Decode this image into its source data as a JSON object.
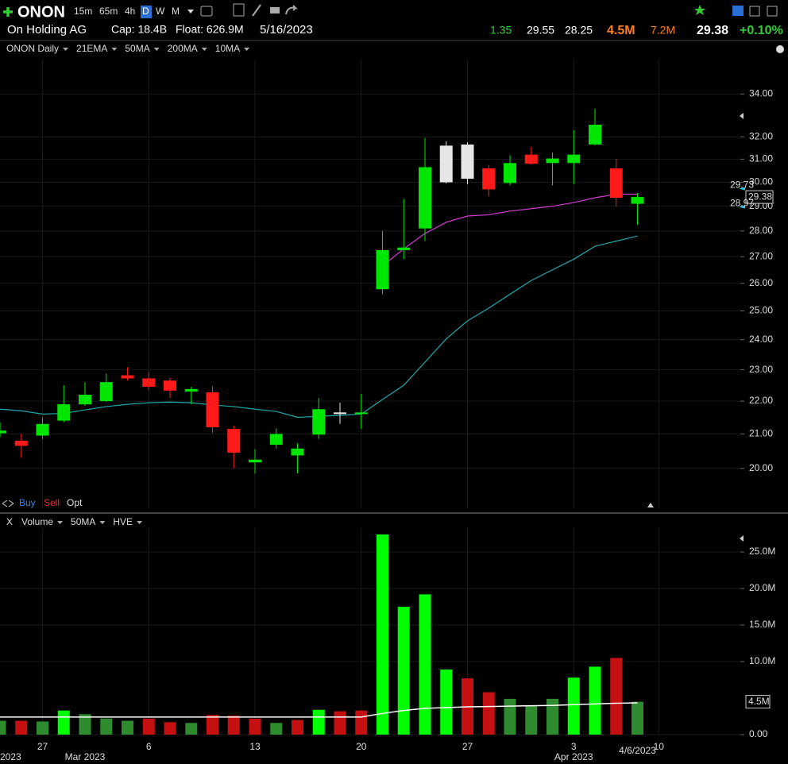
{
  "header": {
    "symbol": "ONON",
    "intervals": [
      "15m",
      "65m",
      "4h",
      "D",
      "W",
      "M"
    ],
    "company": "On Holding AG",
    "cap": "Cap: 18.4B",
    "float": "Float: 626.9M",
    "date": "5/16/2023",
    "quote": [
      "1.35",
      "29.55",
      "28.25",
      "4.5M",
      "7.2M",
      "29.38",
      "+0.10%"
    ],
    "trade_buttons": [
      "Buy",
      "Sell",
      "Opt"
    ]
  },
  "chart_data": [
    {
      "type": "candlestick",
      "title": "ONON Daily",
      "categories": [
        null,
        null,
        "27",
        null,
        null,
        null,
        null,
        "6",
        null,
        null,
        null,
        null,
        "13",
        null,
        null,
        null,
        null,
        "20",
        null,
        null,
        null,
        null,
        "27",
        null,
        null,
        null,
        null,
        "3",
        null,
        null,
        null,
        "10"
      ],
      "month_labels": [
        "2023",
        null,
        null,
        null,
        "Mar 2023",
        null,
        null,
        null,
        null,
        null,
        null,
        null,
        null,
        null,
        null,
        null,
        null,
        null,
        null,
        null,
        null,
        null,
        null,
        null,
        null,
        null,
        null,
        "Apr 2023",
        null,
        null,
        "4/6/2023",
        null
      ],
      "open": [
        21.02,
        20.8,
        20.95,
        21.4,
        21.9,
        22.0,
        22.82,
        22.72,
        22.65,
        22.3,
        22.28,
        21.15,
        20.17,
        20.68,
        20.37,
        20.98,
        21.6,
        21.6,
        25.78,
        27.25,
        28.1,
        30.0,
        30.15,
        30.6,
        29.97,
        31.2,
        30.83,
        30.83,
        31.65,
        30.6,
        29.1,
        null
      ],
      "high": [
        21.35,
        21.0,
        21.5,
        22.5,
        22.6,
        22.88,
        23.08,
        22.92,
        22.75,
        22.45,
        22.48,
        21.25,
        20.55,
        21.17,
        20.72,
        22.1,
        21.95,
        22.22,
        28.0,
        29.3,
        31.95,
        31.8,
        31.75,
        30.75,
        31.17,
        31.55,
        31.3,
        32.3,
        33.3,
        31.02,
        29.55,
        null
      ],
      "low": [
        20.9,
        20.3,
        20.85,
        21.35,
        21.85,
        21.98,
        22.65,
        22.35,
        22.1,
        21.9,
        21.02,
        20.0,
        19.85,
        20.57,
        19.86,
        20.85,
        21.3,
        21.15,
        25.6,
        26.9,
        27.6,
        29.95,
        29.92,
        29.4,
        29.87,
        30.77,
        29.87,
        29.93,
        31.62,
        29.0,
        28.25,
        null
      ],
      "close": [
        21.1,
        20.65,
        21.3,
        21.9,
        22.2,
        22.6,
        22.72,
        22.45,
        22.33,
        22.38,
        21.2,
        20.45,
        20.25,
        21.0,
        20.57,
        21.75,
        21.65,
        21.65,
        27.25,
        27.35,
        30.65,
        31.6,
        31.65,
        29.7,
        30.83,
        30.8,
        31.03,
        31.2,
        32.55,
        29.35,
        29.38,
        null
      ],
      "candle_colors": [
        "#00e600",
        "#ff1a1a",
        "#00e600",
        "#00e600",
        "#00e600",
        "#00e600",
        "#ff1a1a",
        "#ff1a1a",
        "#ff1a1a",
        "#00e600",
        "#ff1a1a",
        "#ff1a1a",
        "#00e600",
        "#00e600",
        "#00e600",
        "#00e600",
        "#e6e6e6",
        "#00e600",
        "#00e600",
        "#00e600",
        "#00e600",
        "#e6e6e6",
        "#e6e6e6",
        "#ff1a1a",
        "#00e600",
        "#ff1a1a",
        "#00e600",
        "#00e600",
        "#00e600",
        "#ff1a1a",
        "#00e600",
        null
      ],
      "series": [
        {
          "name": "21EMA",
          "color": "#1fa8a8",
          "values": [
            21.75,
            21.7,
            21.6,
            21.62,
            21.73,
            21.83,
            21.9,
            21.95,
            21.97,
            21.95,
            21.88,
            21.83,
            21.75,
            21.68,
            21.5,
            21.53,
            21.56,
            21.6,
            22.05,
            22.5,
            23.25,
            24.03,
            24.65,
            25.1,
            25.6,
            26.1,
            26.5,
            26.9,
            27.4,
            27.6,
            27.8,
            null
          ]
        },
        {
          "color": "#d23cd2",
          "values": [
            null,
            null,
            null,
            null,
            null,
            null,
            null,
            null,
            null,
            null,
            null,
            null,
            null,
            null,
            null,
            null,
            null,
            null,
            26.65,
            27.3,
            27.9,
            28.35,
            28.6,
            28.65,
            28.8,
            28.9,
            29.0,
            29.15,
            29.35,
            29.5,
            29.5,
            null
          ]
        }
      ],
      "legend_extra": [
        {
          "name": "50MA",
          "color": "#e6c229"
        },
        {
          "name": "200MA",
          "color": "#ffffff"
        },
        {
          "name": "10MA",
          "color": "#ff8c1a"
        }
      ],
      "title_color": "#2ecc40",
      "log_scale": true,
      "ylim": [
        18.9,
        35.7
      ],
      "yticks": [
        {
          "value": 20,
          "label": "20.00"
        },
        {
          "value": 21,
          "label": "21.00"
        },
        {
          "value": 22,
          "label": "22.00"
        },
        {
          "value": 23,
          "label": "23.00"
        },
        {
          "value": 24,
          "label": "24.00"
        },
        {
          "value": 25,
          "label": "25.00"
        },
        {
          "value": 26,
          "label": "26.00"
        },
        {
          "value": 27,
          "label": "27.00"
        },
        {
          "value": 28,
          "label": "28.00"
        },
        {
          "value": 29,
          "label": "29.00"
        },
        {
          "value": 30,
          "label": "30.00"
        },
        {
          "value": 31,
          "label": "31.00"
        },
        {
          "value": 32,
          "label": "32.00"
        },
        {
          "value": 34,
          "label": "34.00"
        }
      ],
      "price_tag": 29.38,
      "small_tags": [
        29.73,
        28.97
      ],
      "grid": true
    },
    {
      "type": "bar",
      "close": "X",
      "title": "Volume",
      "values": [
        1900000,
        1900000,
        1800000,
        3300000,
        2800000,
        2200000,
        1900000,
        2200000,
        1700000,
        1600000,
        2700000,
        2600000,
        2200000,
        1600000,
        2000000,
        3400000,
        3200000,
        3300000,
        27400000,
        17500000,
        19200000,
        8900000,
        7700000,
        5800000,
        4900000,
        4000000,
        4900000,
        7800000,
        9300000,
        10500000,
        4500000,
        null
      ],
      "colors": [
        "#2e8b2e",
        "#c41010",
        "#2e8b2e",
        "#00ff00",
        "#2e8b2e",
        "#2e8b2e",
        "#2e8b2e",
        "#c41010",
        "#c41010",
        "#2e8b2e",
        "#c41010",
        "#c41010",
        "#c41010",
        "#2e8b2e",
        "#c41010",
        "#00ff00",
        "#c41010",
        "#c41010",
        "#00ff00",
        "#00ff00",
        "#00ff00",
        "#00ff00",
        "#c41010",
        "#c41010",
        "#2e8b2e",
        "#2e8b2e",
        "#2e8b2e",
        "#00ff00",
        "#00ff00",
        "#c41010",
        "#2e8b2e",
        null
      ],
      "series": [
        {
          "name": "50MA",
          "color": "#ffffff",
          "values": [
            2400000,
            2400000,
            2400000,
            2400000,
            2400000,
            2400000,
            2400000,
            2400000,
            2400000,
            2400000,
            2400000,
            2400000,
            2400000,
            2400000,
            2400000,
            2400000,
            2400000,
            2400000,
            2900000,
            3300000,
            3600000,
            3700000,
            3800000,
            3850000,
            3900000,
            3950000,
            4000000,
            4100000,
            4200000,
            4300000,
            4350000,
            null
          ]
        }
      ],
      "legend_extra": [
        "HVE"
      ],
      "title_color": "#2ecc40",
      "ylim": [
        0,
        28260000
      ],
      "yticks": [
        {
          "value": 0,
          "label": "0.00"
        },
        {
          "value": 10000000,
          "label": "10.0M"
        },
        {
          "value": 15000000,
          "label": "15.0M"
        },
        {
          "value": 20000000,
          "label": "20.0M"
        },
        {
          "value": 25000000,
          "label": "25.0M"
        }
      ],
      "tag": {
        "value": 4500000,
        "label": "4.5M"
      },
      "grid": true
    }
  ]
}
